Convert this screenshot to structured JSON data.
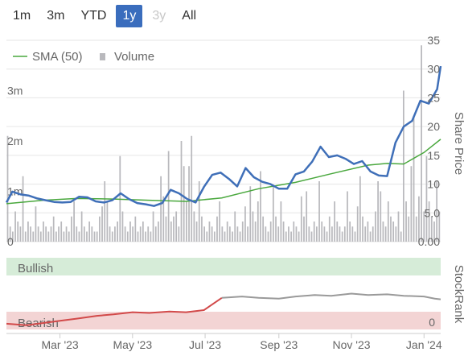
{
  "range_buttons": [
    {
      "label": "1m",
      "state": "normal"
    },
    {
      "label": "3m",
      "state": "normal"
    },
    {
      "label": "YTD",
      "state": "normal"
    },
    {
      "label": "1y",
      "state": "active"
    },
    {
      "label": "3y",
      "state": "disabled"
    },
    {
      "label": "All",
      "state": "normal"
    }
  ],
  "legend": {
    "sma_label": "SMA (50)",
    "volume_label": "Volume"
  },
  "axis_titles": {
    "share_price": "Share Price",
    "stockrank": "StockRank"
  },
  "colors": {
    "price_line": "#3f6fb8",
    "sma_line": "#4aa83e",
    "volume_bar": "#b9b9bd",
    "bullish_band": "#d6ecd8",
    "bearish_band": "#f3d4d4",
    "bullish_text": "#3a8c48",
    "bearish_text": "#c43c3c",
    "rank_bearish_line": "#d24a4a",
    "rank_neutral_line": "#9a9a9a",
    "active_button": "#3a6dbd"
  },
  "chart_data": [
    {
      "type": "line",
      "name_price_axis": "Share Price",
      "price_ticks": [
        "35",
        "30",
        "25",
        "20",
        "15",
        "10",
        "5.0",
        "0.00"
      ],
      "price_ylim": [
        0,
        35
      ],
      "volume_ticks": [
        "3m",
        "2m",
        "1m",
        "0"
      ],
      "volume_ylim": [
        0,
        4000000
      ],
      "x_tick_labels": [
        "Mar '23",
        "May '23",
        "Jul '23",
        "Sep '23",
        "Nov '23",
        "Jan '24"
      ],
      "x_range": [
        "2023-01-15",
        "2024-01-15"
      ],
      "series": [
        {
          "name": "Share Price",
          "x": [
            "2023-01-15",
            "2023-01-20",
            "2023-01-27",
            "2023-02-03",
            "2023-02-10",
            "2023-02-17",
            "2023-02-24",
            "2023-03-03",
            "2023-03-10",
            "2023-03-17",
            "2023-03-24",
            "2023-03-31",
            "2023-04-07",
            "2023-04-14",
            "2023-04-21",
            "2023-04-28",
            "2023-05-05",
            "2023-05-12",
            "2023-05-19",
            "2023-05-26",
            "2023-06-02",
            "2023-06-09",
            "2023-06-16",
            "2023-06-23",
            "2023-06-30",
            "2023-07-07",
            "2023-07-14",
            "2023-07-21",
            "2023-07-28",
            "2023-08-04",
            "2023-08-11",
            "2023-08-18",
            "2023-08-25",
            "2023-09-01",
            "2023-09-08",
            "2023-09-15",
            "2023-09-22",
            "2023-09-29",
            "2023-10-06",
            "2023-10-13",
            "2023-10-20",
            "2023-10-27",
            "2023-11-03",
            "2023-11-10",
            "2023-11-17",
            "2023-11-24",
            "2023-12-01",
            "2023-12-08",
            "2023-12-15",
            "2023-12-22",
            "2023-12-29",
            "2024-01-05",
            "2024-01-12",
            "2024-01-15"
          ],
          "values": [
            6.8,
            8.7,
            8.2,
            8.0,
            7.5,
            7.2,
            6.9,
            6.8,
            6.9,
            7.8,
            7.7,
            7.0,
            6.8,
            7.2,
            8.4,
            7.4,
            6.7,
            6.5,
            6.2,
            6.7,
            9.0,
            8.4,
            7.4,
            6.8,
            9.5,
            11.6,
            12.0,
            10.9,
            9.6,
            12.8,
            11.2,
            10.4,
            10.0,
            9.2,
            9.2,
            11.7,
            12.2,
            13.9,
            16.5,
            14.7,
            15.0,
            14.4,
            13.5,
            14.0,
            12.2,
            11.5,
            11.4,
            17.2,
            20.0,
            21.0,
            24.5,
            24.0,
            26.5,
            30.5
          ]
        },
        {
          "name": "SMA (50)",
          "x": [
            "2023-01-15",
            "2023-02-15",
            "2023-03-15",
            "2023-04-15",
            "2023-05-15",
            "2023-06-15",
            "2023-07-15",
            "2023-08-15",
            "2023-09-15",
            "2023-10-15",
            "2023-11-15",
            "2023-12-01",
            "2023-12-15",
            "2024-01-01",
            "2024-01-15"
          ],
          "values": [
            6.6,
            7.2,
            7.5,
            7.4,
            7.2,
            7.0,
            7.6,
            9.2,
            10.3,
            11.8,
            13.3,
            13.6,
            13.5,
            15.5,
            17.8
          ]
        },
        {
          "name": "Volume",
          "type": "bar",
          "values": [
            2.1,
            0.3,
            0.2,
            0.6,
            0.4,
            0.3,
            1.3,
            0.2,
            0.4,
            0.3,
            0.2,
            0.7,
            0.3,
            0.2,
            0.4,
            0.3,
            0.2,
            0.3,
            0.5,
            0.2,
            0.3,
            0.4,
            0.2,
            0.3,
            0.2,
            0.5,
            0.8,
            0.3,
            0.2,
            0.6,
            0.3,
            0.2,
            0.4,
            0.3,
            0.2,
            0.2,
            0.5,
            0.7,
            1.2,
            0.8,
            0.3,
            0.2,
            0.3,
            0.4,
            1.7,
            0.6,
            0.3,
            0.2,
            0.4,
            0.3,
            0.5,
            0.2,
            0.3,
            0.4,
            0.2,
            0.3,
            0.2,
            0.6,
            0.3,
            0.4,
            1.3,
            0.9,
            0.5,
            1.8,
            0.4,
            0.5,
            0.6,
            0.3,
            2.0,
            1.5,
            0.8,
            1.5,
            2.1,
            0.6,
            0.4,
            1.2,
            0.5,
            0.3,
            0.2,
            0.4,
            0.3,
            0.2,
            0.5,
            0.8,
            0.3,
            0.2,
            0.4,
            0.3,
            0.2,
            0.6,
            0.3,
            0.2,
            0.4,
            0.7,
            0.3,
            1.1,
            0.6,
            0.4,
            0.8,
            1.4,
            0.5,
            0.3,
            0.2,
            0.4,
            1.1,
            0.5,
            0.3,
            0.8,
            0.4,
            0.2,
            0.3,
            0.2,
            0.4,
            0.3,
            0.2,
            0.9,
            0.5,
            1.0,
            0.3,
            0.2,
            0.4,
            0.3,
            1.2,
            0.4,
            0.3,
            0.2,
            0.5,
            0.3,
            0.8,
            0.4,
            0.3,
            0.2,
            0.3,
            1.0,
            0.4,
            0.3,
            0.2,
            0.7,
            1.3,
            0.5,
            0.3,
            0.4,
            0.2,
            0.3,
            0.6,
            1.2,
            1.0,
            0.4,
            0.3,
            0.8,
            0.5,
            0.4,
            0.3,
            0.6,
            0.2,
            3.0,
            0.8,
            0.5,
            1.5,
            2.5,
            0.5,
            0.9,
            3.9,
            0.6,
            1.7,
            0.8,
            0.5,
            0.4,
            1.2,
            0.6
          ]
        }
      ]
    },
    {
      "type": "line",
      "name": "StockRank",
      "bands": [
        "Bullish",
        "Bearish"
      ],
      "ylim": [
        0,
        100
      ],
      "tick_labels": [
        "0"
      ],
      "series": [
        {
          "name": "StockRank",
          "x": [
            "2023-01-15",
            "2023-02-01",
            "2023-02-15",
            "2023-03-01",
            "2023-03-15",
            "2023-04-01",
            "2023-04-15",
            "2023-05-01",
            "2023-05-15",
            "2023-06-01",
            "2023-06-15",
            "2023-06-30",
            "2023-07-15",
            "2023-08-01",
            "2023-08-15",
            "2023-09-01",
            "2023-09-15",
            "2023-10-01",
            "2023-10-15",
            "2023-11-01",
            "2023-11-15",
            "2023-12-01",
            "2023-12-15",
            "2024-01-01",
            "2024-01-10",
            "2024-01-15"
          ],
          "values": [
            8,
            6,
            9,
            12,
            15,
            19,
            21,
            24,
            23,
            25,
            24,
            27,
            44,
            46,
            44,
            43,
            46,
            48,
            47,
            50,
            48,
            49,
            47,
            46,
            43,
            42
          ]
        }
      ]
    }
  ]
}
